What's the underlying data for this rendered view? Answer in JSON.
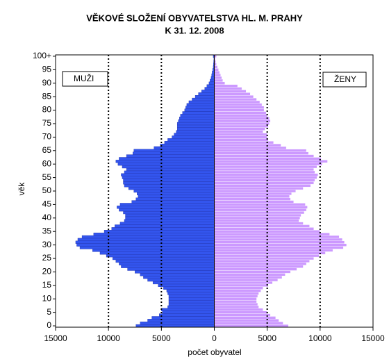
{
  "chart_data": {
    "type": "pyramid",
    "title": "VĚKOVÉ SLOŽENÍ OBYVATELSTVA HL. M. PRAHY",
    "subtitle": "K  31. 12. 2008",
    "x_label": "počet obyvatel",
    "y_label": "věk",
    "categories": [
      "0",
      null,
      null,
      null,
      null,
      "5",
      null,
      null,
      null,
      null,
      "10",
      null,
      null,
      null,
      null,
      "15",
      null,
      null,
      null,
      null,
      "20",
      null,
      null,
      null,
      null,
      "25",
      null,
      null,
      null,
      null,
      "30",
      null,
      null,
      null,
      null,
      "35",
      null,
      null,
      null,
      null,
      "40",
      null,
      null,
      null,
      null,
      "45",
      null,
      null,
      null,
      null,
      "50",
      null,
      null,
      null,
      null,
      "55",
      null,
      null,
      null,
      null,
      "60",
      null,
      null,
      null,
      null,
      "65",
      null,
      null,
      null,
      null,
      "70",
      null,
      null,
      null,
      null,
      "75",
      null,
      null,
      null,
      null,
      "80",
      null,
      null,
      null,
      null,
      "85",
      null,
      null,
      null,
      null,
      "90",
      null,
      null,
      null,
      null,
      "95",
      null,
      null,
      null,
      null,
      "100+"
    ],
    "series": [
      {
        "name": "MUŽI",
        "color": "#3355ee",
        "values": [
          7400,
          7000,
          6300,
          5900,
          5200,
          4900,
          5000,
          4400,
          4300,
          4300,
          4300,
          4300,
          4400,
          4500,
          4800,
          5300,
          5800,
          6300,
          6700,
          7000,
          7500,
          8200,
          8800,
          9000,
          9300,
          9600,
          10200,
          10800,
          11500,
          12700,
          13000,
          13100,
          12900,
          12500,
          11400,
          10400,
          9700,
          9400,
          8900,
          8500,
          8400,
          8400,
          8600,
          9000,
          9200,
          8900,
          7800,
          7400,
          7200,
          7300,
          7600,
          8100,
          8500,
          8600,
          8600,
          8700,
          8800,
          8500,
          8300,
          8700,
          9100,
          9300,
          9000,
          8300,
          7700,
          7600,
          5700,
          5100,
          4700,
          4400,
          4000,
          3800,
          3600,
          3500,
          3500,
          3500,
          3400,
          3300,
          3200,
          3000,
          2800,
          2700,
          2600,
          2400,
          2100,
          1800,
          1500,
          1200,
          900,
          700,
          500,
          400,
          300,
          250,
          200,
          150,
          100,
          80,
          60,
          40,
          100
        ]
      },
      {
        "name": "ŽENY",
        "color": "#cc99ff",
        "values": [
          7000,
          6500,
          6100,
          5800,
          5300,
          5000,
          4600,
          4200,
          4100,
          4000,
          4000,
          4100,
          4200,
          4400,
          4600,
          5100,
          5500,
          6000,
          6400,
          6700,
          7200,
          7800,
          8400,
          8700,
          9000,
          9400,
          9900,
          10500,
          11200,
          12200,
          12500,
          12300,
          12100,
          11800,
          10900,
          10000,
          9400,
          9000,
          8400,
          8000,
          8100,
          8200,
          8500,
          8700,
          8800,
          8600,
          7500,
          7200,
          7100,
          7300,
          7700,
          8400,
          9100,
          9400,
          9500,
          9700,
          9800,
          9500,
          9400,
          9700,
          10200,
          10700,
          10100,
          9400,
          8900,
          8700,
          6800,
          6300,
          5600,
          5100,
          5000,
          5000,
          4600,
          4800,
          5100,
          5200,
          5300,
          5200,
          5000,
          4900,
          4700,
          4700,
          4500,
          4300,
          4000,
          3700,
          3400,
          3000,
          2600,
          2200,
          1000,
          800,
          700,
          600,
          500,
          400,
          300,
          200,
          150,
          100,
          200
        ]
      }
    ],
    "xlim": [
      -15000,
      15000
    ],
    "xticks": [
      {
        "value": -15000,
        "label": "15000"
      },
      {
        "value": -10000,
        "label": "10000"
      },
      {
        "value": -5000,
        "label": "5000"
      },
      0,
      5000,
      10000,
      15000
    ],
    "grid": true
  }
}
